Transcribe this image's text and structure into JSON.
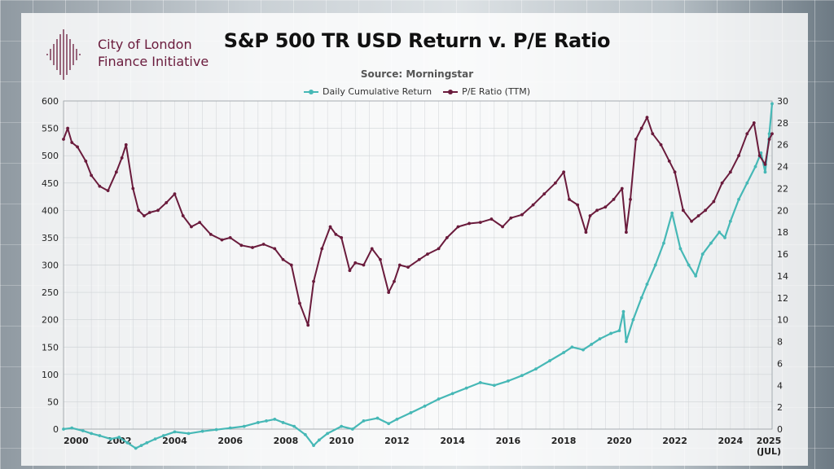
{
  "branding": {
    "org_line1": "City of London",
    "org_line2": "Finance Initiative"
  },
  "colors": {
    "return_series": "#46b8b6",
    "pe_series": "#6a1b3c",
    "brand": "#6a1b3c"
  },
  "chart_data": {
    "type": "line",
    "title": "S&P 500 TR USD Return v. P/E Ratio",
    "subtitle": "Source: Morningstar",
    "legend_position": "top-center",
    "grid": true,
    "x_range": [
      2000,
      2025.5
    ],
    "x_ticks": [
      {
        "value": 2000,
        "label": "2000"
      },
      {
        "value": 2002,
        "label": "2002"
      },
      {
        "value": 2004,
        "label": "2004"
      },
      {
        "value": 2006,
        "label": "2006"
      },
      {
        "value": 2008,
        "label": "2008"
      },
      {
        "value": 2010,
        "label": "2010"
      },
      {
        "value": 2012,
        "label": "2012"
      },
      {
        "value": 2014,
        "label": "2014"
      },
      {
        "value": 2016,
        "label": "2016"
      },
      {
        "value": 2018,
        "label": "2018"
      },
      {
        "value": 2020,
        "label": "2020"
      },
      {
        "value": 2022,
        "label": "2022"
      },
      {
        "value": 2024,
        "label": "2024"
      },
      {
        "value": 2025.5,
        "label": "2025",
        "sublabel": "(JUL)"
      }
    ],
    "y_left": {
      "min": 0,
      "max": 600,
      "ticks": [
        0,
        50,
        100,
        150,
        200,
        250,
        300,
        350,
        400,
        450,
        500,
        550,
        600
      ]
    },
    "y_right": {
      "min": 0,
      "max": 30,
      "ticks": [
        0,
        2,
        4,
        6,
        8,
        10,
        12,
        14,
        16,
        18,
        20,
        22,
        24,
        26,
        28,
        30
      ]
    },
    "series": [
      {
        "name": "Daily Cumulative Return",
        "axis": "left",
        "x": [
          2000.0,
          2000.3,
          2000.7,
          2001.0,
          2001.3,
          2001.7,
          2002.0,
          2002.3,
          2002.6,
          2002.8,
          2003.0,
          2003.3,
          2003.6,
          2004.0,
          2004.5,
          2005.0,
          2005.5,
          2006.0,
          2006.5,
          2007.0,
          2007.3,
          2007.6,
          2007.9,
          2008.3,
          2008.7,
          2009.0,
          2009.2,
          2009.5,
          2010.0,
          2010.4,
          2010.8,
          2011.3,
          2011.7,
          2012.0,
          2012.5,
          2013.0,
          2013.5,
          2014.0,
          2014.5,
          2015.0,
          2015.5,
          2016.0,
          2016.5,
          2017.0,
          2017.5,
          2018.0,
          2018.3,
          2018.7,
          2019.0,
          2019.3,
          2019.7,
          2020.0,
          2020.15,
          2020.25,
          2020.5,
          2020.8,
          2021.0,
          2021.3,
          2021.6,
          2021.9,
          2022.2,
          2022.5,
          2022.75,
          2023.0,
          2023.3,
          2023.6,
          2023.8,
          2024.0,
          2024.3,
          2024.6,
          2024.9,
          2025.1,
          2025.25,
          2025.4,
          2025.5
        ],
        "values": [
          0,
          2,
          -3,
          -8,
          -12,
          -18,
          -15,
          -25,
          -35,
          -30,
          -25,
          -18,
          -12,
          -5,
          -8,
          -4,
          -1,
          2,
          5,
          12,
          15,
          18,
          12,
          5,
          -10,
          -30,
          -20,
          -8,
          5,
          0,
          15,
          20,
          10,
          18,
          30,
          42,
          55,
          65,
          75,
          85,
          80,
          88,
          98,
          110,
          125,
          140,
          150,
          145,
          155,
          165,
          175,
          180,
          215,
          160,
          200,
          240,
          265,
          300,
          340,
          395,
          330,
          300,
          280,
          320,
          340,
          360,
          350,
          380,
          420,
          450,
          480,
          505,
          470,
          540,
          595
        ]
      },
      {
        "name": "P/E Ratio (TTM)",
        "axis": "right",
        "x": [
          2000.0,
          2000.15,
          2000.3,
          2000.5,
          2000.8,
          2001.0,
          2001.3,
          2001.6,
          2001.9,
          2002.1,
          2002.25,
          2002.5,
          2002.7,
          2002.9,
          2003.1,
          2003.4,
          2003.7,
          2004.0,
          2004.3,
          2004.6,
          2004.9,
          2005.3,
          2005.7,
          2006.0,
          2006.4,
          2006.8,
          2007.2,
          2007.6,
          2007.9,
          2008.2,
          2008.5,
          2008.8,
          2009.0,
          2009.3,
          2009.6,
          2009.8,
          2010.0,
          2010.3,
          2010.5,
          2010.8,
          2011.1,
          2011.4,
          2011.7,
          2011.9,
          2012.1,
          2012.4,
          2012.8,
          2013.1,
          2013.5,
          2013.8,
          2014.2,
          2014.6,
          2015.0,
          2015.4,
          2015.8,
          2016.1,
          2016.5,
          2016.9,
          2017.3,
          2017.7,
          2018.0,
          2018.2,
          2018.5,
          2018.8,
          2018.95,
          2019.2,
          2019.5,
          2019.8,
          2020.1,
          2020.25,
          2020.4,
          2020.6,
          2020.8,
          2021.0,
          2021.2,
          2021.5,
          2021.8,
          2022.0,
          2022.3,
          2022.6,
          2022.85,
          2023.1,
          2023.4,
          2023.7,
          2024.0,
          2024.3,
          2024.6,
          2024.85,
          2025.05,
          2025.25,
          2025.4,
          2025.5
        ],
        "values": [
          26.5,
          27.5,
          26.2,
          25.8,
          24.5,
          23.2,
          22.2,
          21.8,
          23.5,
          24.8,
          26.0,
          22.0,
          20.0,
          19.5,
          19.8,
          20.0,
          20.7,
          21.5,
          19.5,
          18.5,
          18.9,
          17.8,
          17.3,
          17.5,
          16.8,
          16.6,
          16.9,
          16.5,
          15.5,
          15.0,
          11.5,
          9.5,
          13.5,
          16.5,
          18.5,
          17.8,
          17.5,
          14.5,
          15.2,
          15.0,
          16.5,
          15.5,
          12.5,
          13.5,
          15.0,
          14.8,
          15.5,
          16.0,
          16.5,
          17.5,
          18.5,
          18.8,
          18.9,
          19.2,
          18.5,
          19.3,
          19.6,
          20.5,
          21.5,
          22.5,
          23.5,
          21.0,
          20.5,
          18.0,
          19.5,
          20.0,
          20.3,
          21.0,
          22.0,
          18.0,
          21.0,
          26.5,
          27.5,
          28.5,
          27.0,
          26.0,
          24.5,
          23.5,
          20.0,
          19.0,
          19.5,
          20.0,
          20.8,
          22.5,
          23.5,
          25.0,
          27.0,
          28.0,
          25.0,
          24.2,
          26.5,
          27.0
        ]
      }
    ]
  }
}
